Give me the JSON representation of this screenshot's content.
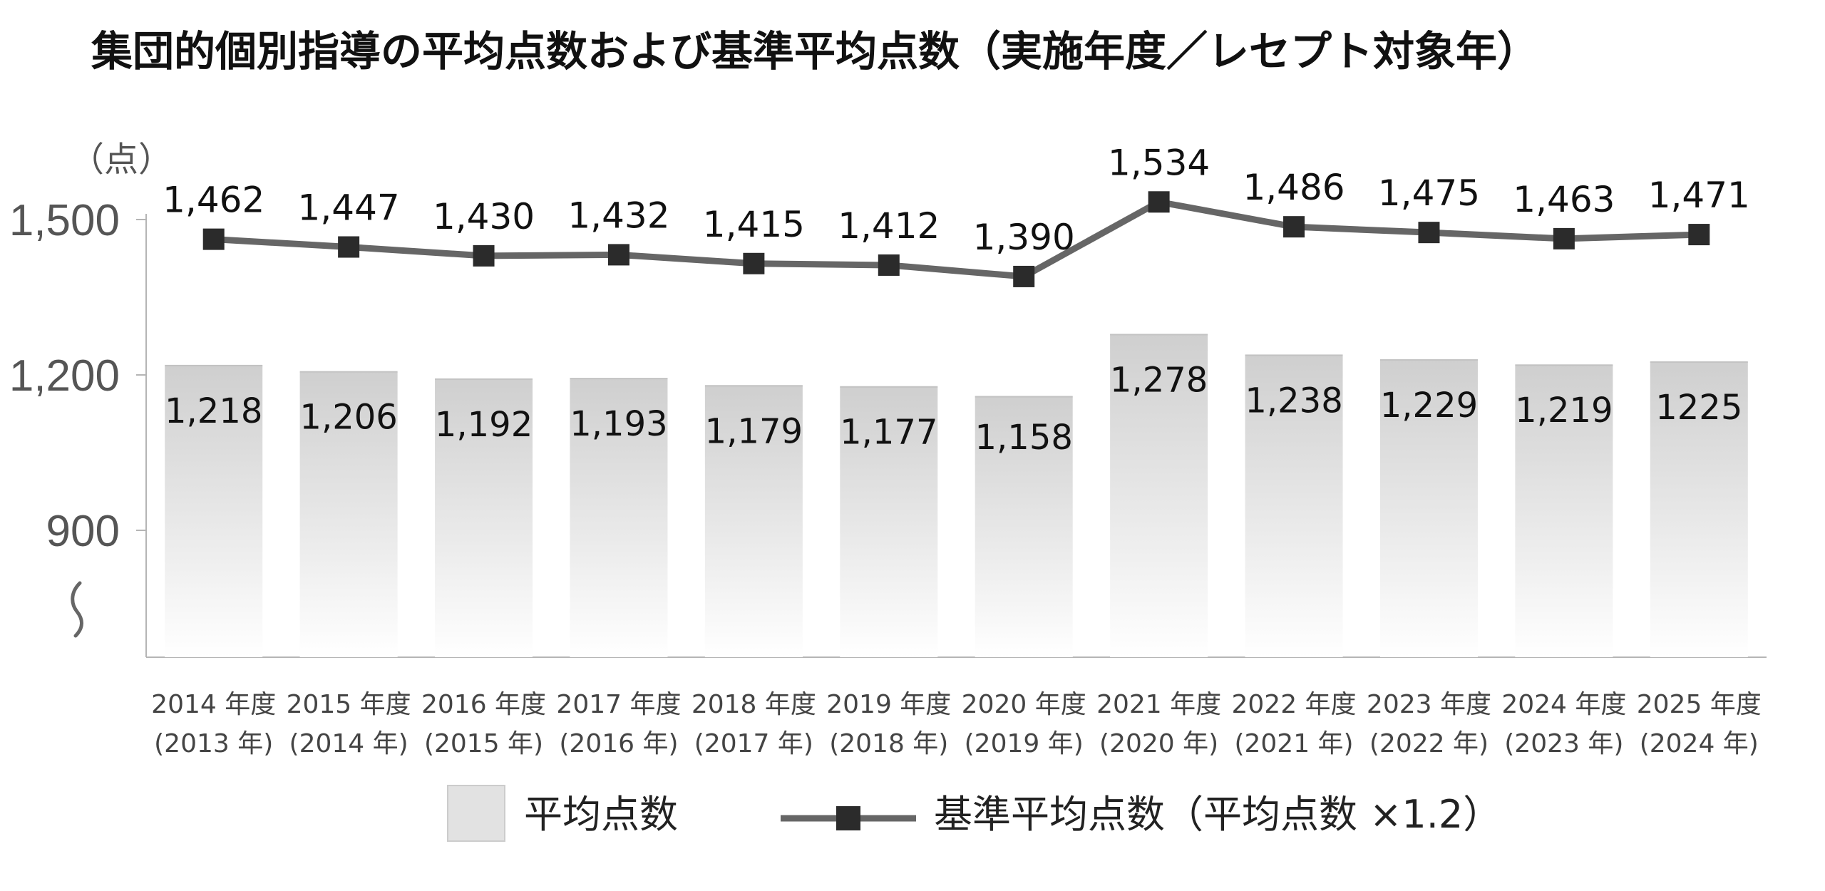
{
  "chart_data": {
    "type": "bar",
    "title": "集団的個別指導の平均点数および基準平均点数（実施年度／レセプト対象年）",
    "ylabel": "（点）",
    "ylim": [
      840,
      1500
    ],
    "yticks": [
      "1,500",
      "1,200",
      "900"
    ],
    "ytick_values": [
      1500,
      1200,
      900
    ],
    "axis_break": true,
    "grid": false,
    "legend_position": "bottom",
    "categories": [
      [
        "2014 年度",
        "(2013 年)"
      ],
      [
        "2015 年度",
        "(2014 年)"
      ],
      [
        "2016 年度",
        "(2015 年)"
      ],
      [
        "2017 年度",
        "(2016 年)"
      ],
      [
        "2018 年度",
        "(2017 年)"
      ],
      [
        "2019 年度",
        "(2018 年)"
      ],
      [
        "2020 年度",
        "(2019 年)"
      ],
      [
        "2021 年度",
        "(2020 年)"
      ],
      [
        "2022 年度",
        "(2021 年)"
      ],
      [
        "2023 年度",
        "(2022 年)"
      ],
      [
        "2024 年度",
        "(2023 年)"
      ],
      [
        "2025 年度",
        "(2024 年)"
      ]
    ],
    "series": [
      {
        "name": "平均点数",
        "kind": "bar",
        "color": "#d4d4d4",
        "values": [
          1218,
          1206,
          1192,
          1193,
          1179,
          1177,
          1158,
          1278,
          1238,
          1229,
          1219,
          1225
        ],
        "labels": [
          "1,218",
          "1,206",
          "1,192",
          "1,193",
          "1,179",
          "1,177",
          "1,158",
          "1,278",
          "1,238",
          "1,229",
          "1,219",
          "1225"
        ]
      },
      {
        "name": "基準平均点数（平均点数 ×1.2）",
        "kind": "line",
        "color": "#666666",
        "marker_color": "#2b2b2b",
        "values": [
          1462,
          1447,
          1430,
          1432,
          1415,
          1412,
          1390,
          1534,
          1486,
          1475,
          1463,
          1471
        ],
        "labels": [
          "1,462",
          "1,447",
          "1,430",
          "1,432",
          "1,415",
          "1,412",
          "1,390",
          "1,534",
          "1,486",
          "1,475",
          "1,463",
          "1,471"
        ]
      }
    ]
  }
}
